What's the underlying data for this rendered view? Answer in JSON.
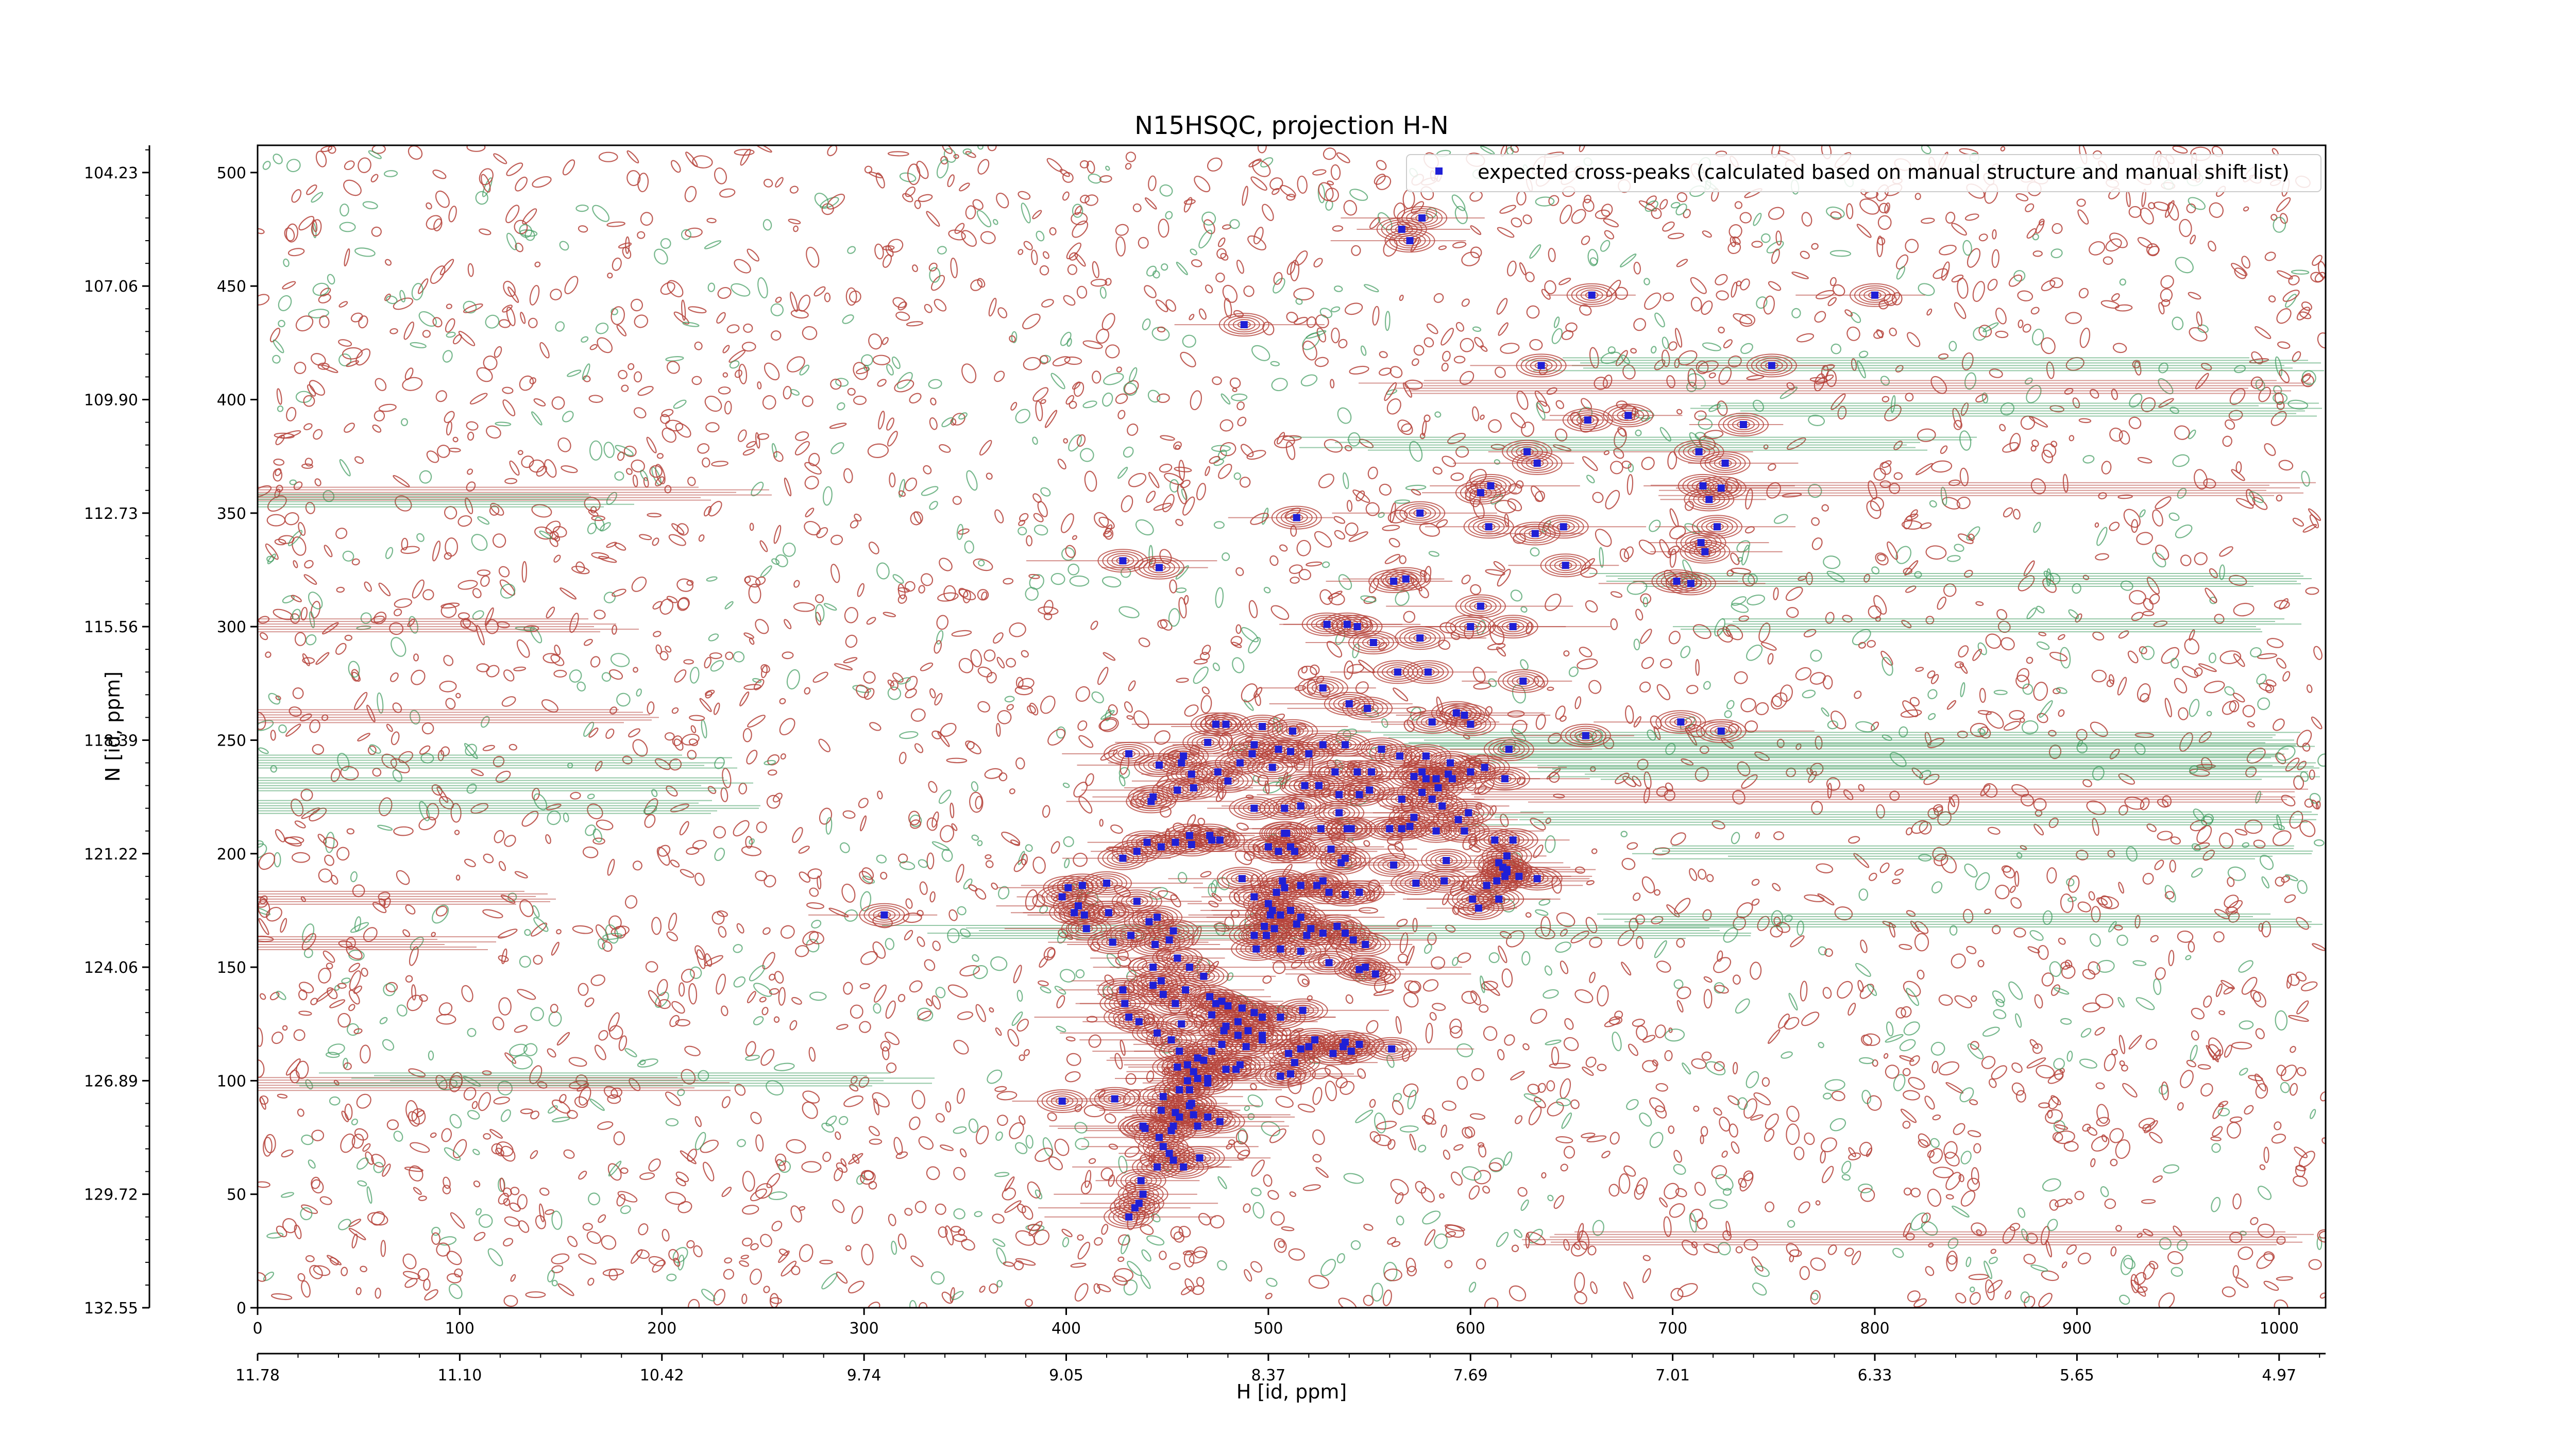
{
  "chart_data": {
    "type": "scatter",
    "title": "N15HSQC, projection H-N",
    "xlabel_index": "",
    "xlabel_ppm": "H [id, ppm]",
    "ylabel": "N [id, ppm]",
    "xlim": [
      0,
      1023
    ],
    "ylim": [
      0,
      512
    ],
    "x_ticks": [
      0,
      100,
      200,
      300,
      400,
      500,
      600,
      700,
      800,
      900,
      1000
    ],
    "y_ticks": [
      0,
      50,
      100,
      150,
      200,
      250,
      300,
      350,
      400,
      450,
      500
    ],
    "x_ppm_tick_labels": [
      "11.78",
      "11.10",
      "10.42",
      "9.74",
      "9.05",
      "8.37",
      "7.69",
      "7.01",
      "6.33",
      "5.65",
      "4.97"
    ],
    "x_ppm_tick_positions": [
      0,
      100,
      200,
      300,
      400,
      500,
      600,
      700,
      800,
      900,
      1000
    ],
    "y_ppm_tick_labels": [
      "104.23",
      "107.06",
      "109.90",
      "112.73",
      "115.56",
      "118.39",
      "121.22",
      "124.06",
      "126.89",
      "129.72",
      "132.55"
    ],
    "y_ppm_tick_positions": [
      500,
      450,
      400,
      350,
      300,
      250,
      200,
      150,
      100,
      50,
      0
    ],
    "grid": false,
    "legend_position": "top-right",
    "colors": {
      "positive_contours": "#b5423a",
      "negative_contours": "#3d9a5c",
      "peaks": "#1f1fd6"
    },
    "series": [
      {
        "name": "expected cross-peaks (calculated based on manual structure and manual shift list)",
        "marker": "square",
        "points": [
          [
            566,
            475
          ],
          [
            570,
            470
          ],
          [
            576,
            480
          ],
          [
            488,
            433
          ],
          [
            660,
            446
          ],
          [
            800,
            446
          ],
          [
            635,
            415
          ],
          [
            749,
            415
          ],
          [
            658,
            391
          ],
          [
            678,
            393
          ],
          [
            735,
            389
          ],
          [
            628,
            377
          ],
          [
            713,
            377
          ],
          [
            633,
            372
          ],
          [
            726,
            372
          ],
          [
            610,
            362
          ],
          [
            605,
            359
          ],
          [
            715,
            362
          ],
          [
            718,
            356
          ],
          [
            724,
            361
          ],
          [
            514,
            348
          ],
          [
            575,
            350
          ],
          [
            632,
            341
          ],
          [
            646,
            344
          ],
          [
            609,
            344
          ],
          [
            722,
            344
          ],
          [
            714,
            337
          ],
          [
            716,
            333
          ],
          [
            647,
            327
          ],
          [
            428,
            329
          ],
          [
            446,
            326
          ],
          [
            562,
            320
          ],
          [
            568,
            321
          ],
          [
            702,
            320
          ],
          [
            709,
            319
          ],
          [
            605,
            309
          ],
          [
            529,
            301
          ],
          [
            539,
            301
          ],
          [
            544,
            300
          ],
          [
            600,
            300
          ],
          [
            621,
            300
          ],
          [
            552,
            293
          ],
          [
            575,
            295
          ],
          [
            564,
            280
          ],
          [
            579,
            280
          ],
          [
            527,
            273
          ],
          [
            626,
            276
          ],
          [
            704,
            258
          ],
          [
            724,
            254
          ],
          [
            540,
            266
          ],
          [
            549,
            264
          ],
          [
            581,
            258
          ],
          [
            593,
            262
          ],
          [
            597,
            261
          ],
          [
            600,
            257
          ],
          [
            474,
            257
          ],
          [
            479,
            257
          ],
          [
            497,
            256
          ],
          [
            512,
            254
          ],
          [
            657,
            252
          ],
          [
            470,
            249
          ],
          [
            493,
            248
          ],
          [
            505,
            246
          ],
          [
            527,
            248
          ],
          [
            538,
            248
          ],
          [
            556,
            246
          ],
          [
            619,
            246
          ],
          [
            431,
            244
          ],
          [
            446,
            239
          ],
          [
            458,
            243
          ],
          [
            486,
            240
          ],
          [
            492,
            244
          ],
          [
            511,
            245
          ],
          [
            520,
            244
          ],
          [
            578,
            243
          ],
          [
            565,
            243
          ],
          [
            576,
            236
          ],
          [
            590,
            240
          ],
          [
            607,
            238
          ],
          [
            600,
            236
          ],
          [
            589,
            235
          ],
          [
            462,
            235
          ],
          [
            457,
            240
          ],
          [
            475,
            236
          ],
          [
            502,
            238
          ],
          [
            533,
            236
          ],
          [
            544,
            236
          ],
          [
            551,
            236
          ],
          [
            572,
            234
          ],
          [
            578,
            233
          ],
          [
            583,
            233
          ],
          [
            584,
            229
          ],
          [
            591,
            233
          ],
          [
            617,
            233
          ],
          [
            455,
            228
          ],
          [
            463,
            229
          ],
          [
            480,
            232
          ],
          [
            518,
            230
          ],
          [
            525,
            230
          ],
          [
            550,
            228
          ],
          [
            576,
            227
          ],
          [
            581,
            224
          ],
          [
            566,
            224
          ],
          [
            443,
            225
          ],
          [
            442,
            223
          ],
          [
            493,
            220
          ],
          [
            508,
            220
          ],
          [
            516,
            221
          ],
          [
            535,
            226
          ],
          [
            545,
            226
          ],
          [
            535,
            218
          ],
          [
            586,
            221
          ],
          [
            599,
            218
          ],
          [
            572,
            216
          ],
          [
            594,
            215
          ],
          [
            560,
            211
          ],
          [
            526,
            211
          ],
          [
            541,
            211
          ],
          [
            566,
            211
          ],
          [
            570,
            212
          ],
          [
            509,
            209
          ],
          [
            539,
            211
          ],
          [
            461,
            208
          ],
          [
            472,
            206
          ],
          [
            476,
            206
          ],
          [
            440,
            205
          ],
          [
            435,
            201
          ],
          [
            428,
            198
          ],
          [
            511,
            203
          ],
          [
            505,
            201
          ],
          [
            531,
            202
          ],
          [
            583,
            210
          ],
          [
            597,
            210
          ],
          [
            612,
            206
          ],
          [
            621,
            206
          ],
          [
            454,
            205
          ],
          [
            462,
            204
          ],
          [
            471,
            208
          ],
          [
            508,
            209
          ],
          [
            500,
            203
          ],
          [
            447,
            203
          ],
          [
            513,
            201
          ],
          [
            538,
            198
          ],
          [
            536,
            196
          ],
          [
            562,
            195
          ],
          [
            588,
            197
          ],
          [
            618,
            199
          ],
          [
            614,
            196
          ],
          [
            616,
            194
          ],
          [
            618,
            193
          ],
          [
            618,
            192
          ],
          [
            617,
            190
          ],
          [
            624,
            190
          ],
          [
            601,
            180
          ],
          [
            614,
            180
          ],
          [
            604,
            176
          ],
          [
            573,
            187
          ],
          [
            587,
            188
          ],
          [
            633,
            189
          ],
          [
            613,
            188
          ],
          [
            608,
            186
          ],
          [
            420,
            187
          ],
          [
            487,
            189
          ],
          [
            507,
            188
          ],
          [
            527,
            188
          ],
          [
            538,
            182
          ],
          [
            493,
            181
          ],
          [
            500,
            178
          ],
          [
            502,
            175
          ],
          [
            501,
            173
          ],
          [
            511,
            175
          ],
          [
            506,
            173
          ],
          [
            516,
            172
          ],
          [
            514,
            169
          ],
          [
            521,
            167
          ],
          [
            519,
            164
          ],
          [
            527,
            165
          ],
          [
            534,
            168
          ],
          [
            538,
            165
          ],
          [
            542,
            162
          ],
          [
            548,
            160
          ],
          [
            499,
            164
          ],
          [
            493,
            164
          ],
          [
            498,
            168
          ],
          [
            503,
            167
          ],
          [
            494,
            158
          ],
          [
            506,
            158
          ],
          [
            516,
            157
          ],
          [
            530,
            152
          ],
          [
            548,
            150
          ],
          [
            545,
            149
          ],
          [
            553,
            147
          ],
          [
            443,
            142
          ],
          [
            459,
            140
          ],
          [
            471,
            137
          ],
          [
            477,
            135
          ],
          [
            474,
            134
          ],
          [
            480,
            133
          ],
          [
            487,
            132
          ],
          [
            493,
            130
          ],
          [
            517,
            131
          ],
          [
            506,
            128
          ],
          [
            497,
            128
          ],
          [
            485,
            126
          ],
          [
            478,
            122
          ],
          [
            490,
            122
          ],
          [
            497,
            120
          ],
          [
            523,
            118
          ],
          [
            538,
            117
          ],
          [
            545,
            116
          ],
          [
            561,
            114
          ],
          [
            541,
            113
          ],
          [
            513,
            108
          ],
          [
            486,
            107
          ],
          [
            479,
            105
          ],
          [
            511,
            103
          ],
          [
            506,
            102
          ],
          [
            465,
            101
          ],
          [
            460,
            100
          ],
          [
            461,
            96
          ],
          [
            448,
            93
          ],
          [
            447,
            87
          ],
          [
            454,
            86
          ],
          [
            470,
            84
          ],
          [
            476,
            82
          ],
          [
            453,
            80
          ],
          [
            438,
            80
          ],
          [
            439,
            79
          ],
          [
            452,
            78
          ],
          [
            446,
            75
          ],
          [
            448,
            71
          ],
          [
            451,
            68
          ],
          [
            466,
            66
          ],
          [
            453,
            65
          ],
          [
            458,
            62
          ],
          [
            437,
            56
          ],
          [
            438,
            50
          ],
          [
            436,
            46
          ],
          [
            434,
            44
          ],
          [
            431,
            40
          ],
          [
            406,
            177
          ],
          [
            421,
            174
          ],
          [
            435,
            179
          ],
          [
            410,
            167
          ],
          [
            398,
            181
          ],
          [
            408,
            186
          ],
          [
            432,
            164
          ],
          [
            444,
            160
          ],
          [
            455,
            154
          ],
          [
            461,
            150
          ],
          [
            468,
            146
          ],
          [
            448,
            138
          ],
          [
            454,
            134
          ],
          [
            472,
            129
          ],
          [
            452,
            118
          ],
          [
            456,
            113
          ],
          [
            445,
            172
          ],
          [
            441,
            170
          ],
          [
            453,
            166
          ],
          [
            451,
            162
          ],
          [
            508,
            185
          ],
          [
            516,
            186
          ],
          [
            504,
            183
          ],
          [
            524,
            186
          ],
          [
            530,
            183
          ],
          [
            545,
            183
          ],
          [
            310,
            173
          ],
          [
            401,
            185
          ],
          [
            404,
            174
          ],
          [
            409,
            173
          ],
          [
            423,
            161
          ],
          [
            443,
            150
          ],
          [
            447,
            144
          ],
          [
            428,
            140
          ],
          [
            429,
            134
          ],
          [
            431,
            128
          ],
          [
            436,
            126
          ],
          [
            445,
            121
          ],
          [
            457,
            125
          ],
          [
            477,
            116
          ],
          [
            484,
            105
          ],
          [
            510,
            112
          ],
          [
            516,
            114
          ],
          [
            520,
            115
          ],
          [
            532,
            112
          ],
          [
            537,
            115
          ],
          [
            462,
            90
          ],
          [
            461,
            89
          ],
          [
            456,
            84
          ],
          [
            465,
            80
          ],
          [
            479,
            124
          ],
          [
            485,
            120
          ],
          [
            497,
            118
          ],
          [
            489,
            115
          ],
          [
            472,
            113
          ],
          [
            465,
            110
          ],
          [
            468,
            109
          ],
          [
            463,
            104
          ],
          [
            460,
            107
          ],
          [
            455,
            106
          ],
          [
            470,
            101
          ],
          [
            470,
            99
          ],
          [
            456,
            96
          ],
          [
            398,
            91
          ],
          [
            424,
            92
          ],
          [
            463,
            85
          ],
          [
            445,
            62
          ]
        ]
      }
    ]
  }
}
